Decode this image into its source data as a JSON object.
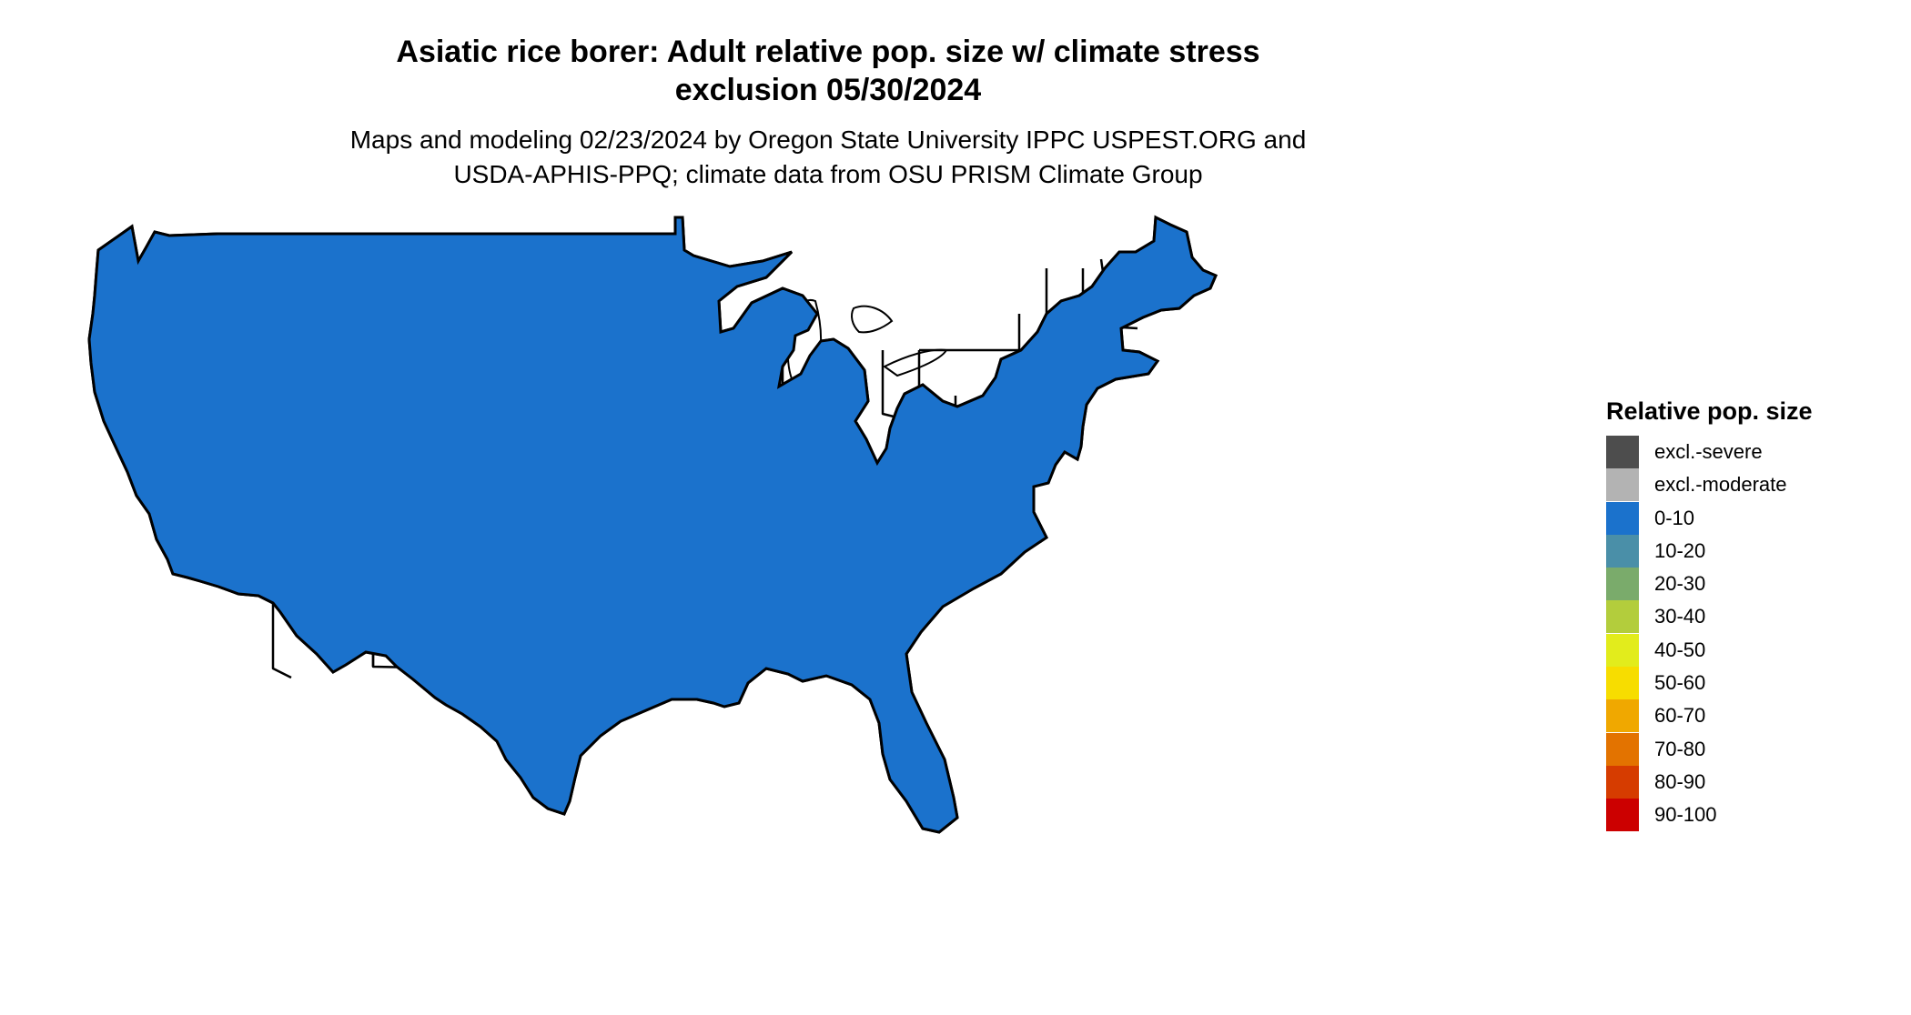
{
  "title": {
    "line1": "Asiatic rice borer: Adult relative pop. size w/ climate stress",
    "line2": "exclusion 05/30/2024"
  },
  "subtitle": {
    "line1": "Maps and modeling 02/23/2024 by Oregon State University IPPC USPEST.ORG and",
    "line2": "USDA-APHIS-PPQ; climate data from OSU PRISM Climate Group"
  },
  "map": {
    "base_color": "#1b72cc",
    "border_color": "#000000",
    "lake_color": "#ffffff",
    "icons": [
      "us-map-icon"
    ]
  },
  "legend": {
    "title": "Relative pop. size",
    "items": [
      {
        "label": "excl.-severe",
        "color": "#4d4d4d"
      },
      {
        "label": "excl.-moderate",
        "color": "#b3b3b3"
      },
      {
        "label": "0-10",
        "color": "#1b72cc"
      },
      {
        "label": "10-20",
        "color": "#4a8fa8"
      },
      {
        "label": "20-30",
        "color": "#7aab6b"
      },
      {
        "label": "30-40",
        "color": "#b3cd3c"
      },
      {
        "label": "40-50",
        "color": "#e2ec1c"
      },
      {
        "label": "50-60",
        "color": "#f7dd00"
      },
      {
        "label": "60-70",
        "color": "#f0a800"
      },
      {
        "label": "70-80",
        "color": "#e37300"
      },
      {
        "label": "80-90",
        "color": "#d63c00"
      },
      {
        "label": "90-100",
        "color": "#cc0000"
      }
    ]
  }
}
